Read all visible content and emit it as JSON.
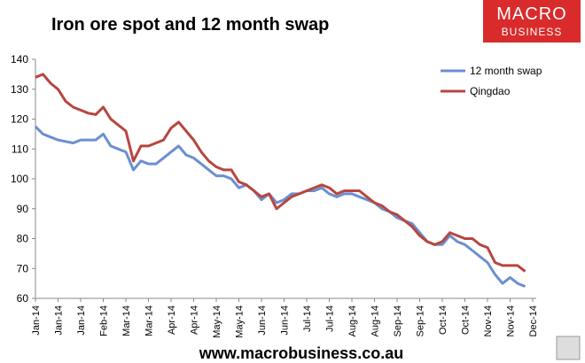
{
  "chart_data": {
    "type": "line",
    "title": "Iron ore spot and 12 month swap",
    "logo": {
      "line1": "MACRO",
      "line2": "BUSINESS"
    },
    "footer": "www.macrobusiness.co.au",
    "categories": [
      "Jan-14",
      null,
      null,
      "Jan-14",
      null,
      null,
      "Jan-14",
      null,
      null,
      "Feb-14",
      null,
      null,
      "Mar-14",
      null,
      null,
      "Mar-14",
      null,
      null,
      "Apr-14",
      null,
      null,
      "Apr-14",
      null,
      null,
      "May-14",
      null,
      null,
      "May-14",
      null,
      null,
      "Jun-14",
      null,
      null,
      "Jun-14",
      null,
      null,
      "Jul-14",
      null,
      null,
      "Jul-14",
      null,
      null,
      "Aug-14",
      null,
      null,
      "Aug-14",
      null,
      null,
      "Sep-14",
      null,
      null,
      "Sep-14",
      null,
      null,
      "Oct-14",
      null,
      null,
      "Oct-14",
      null,
      null,
      "Nov-14",
      null,
      null,
      "Nov-14",
      null,
      null,
      "Dec-14"
    ],
    "series": [
      {
        "name": "12 month swap",
        "color": "#6b8fd0",
        "values": [
          117.5,
          115,
          114,
          113,
          112.5,
          112,
          113,
          113,
          113,
          115,
          111,
          110,
          109,
          103,
          106,
          105,
          105,
          107,
          109,
          111,
          108,
          107,
          105,
          103,
          101,
          101,
          100,
          97,
          98,
          96,
          93,
          95,
          92,
          93,
          95,
          95,
          96,
          96,
          97,
          95,
          94,
          95,
          95,
          94,
          93,
          92,
          90,
          89,
          87,
          86,
          85,
          82,
          79,
          78,
          78,
          81,
          79,
          78,
          76,
          74,
          72,
          68,
          65,
          67,
          65,
          64,
          null
        ]
      },
      {
        "name": "Qingdao",
        "color": "#b8463f",
        "values": [
          134,
          135,
          132,
          130,
          126,
          124,
          123,
          122,
          121.5,
          124,
          120,
          118,
          116,
          106,
          111,
          111,
          112,
          113,
          117,
          119,
          116,
          113,
          109,
          106,
          104,
          103,
          103,
          99,
          98,
          96,
          94,
          95,
          90,
          92,
          94,
          95,
          96,
          97,
          98,
          97,
          95,
          96,
          96,
          96,
          94,
          92,
          91,
          89,
          88,
          86,
          84,
          81,
          79,
          78,
          79,
          82,
          81,
          80,
          80,
          78,
          77,
          72,
          71,
          71,
          71,
          69,
          null
        ]
      }
    ],
    "ylim": [
      60,
      140
    ],
    "yticks": [
      60,
      70,
      80,
      90,
      100,
      110,
      120,
      130,
      140
    ],
    "grid": false,
    "legend": "top-right"
  }
}
